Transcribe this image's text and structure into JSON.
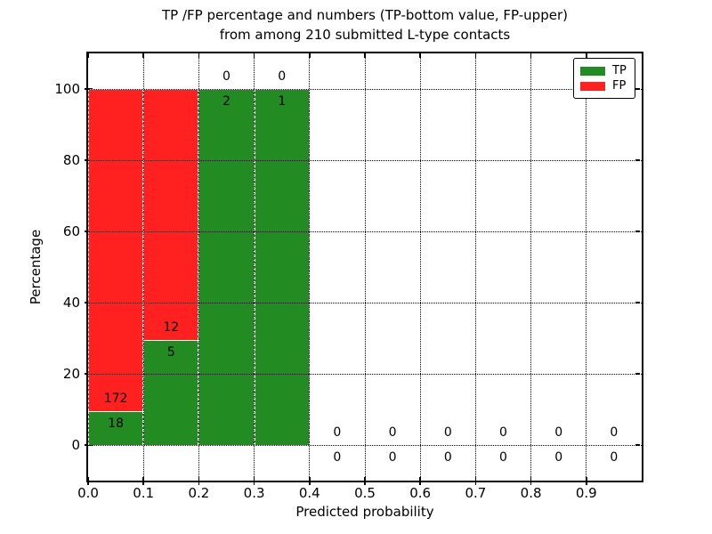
{
  "title": {
    "line1": "TP /FP percentage and numbers (TP-bottom value, FP-upper)",
    "line2": "from among 210 submitted L-type contacts"
  },
  "axes": {
    "xlabel": "Predicted probability",
    "ylabel": "Percentage",
    "x_ticks": [
      "0.0",
      "0.1",
      "0.2",
      "0.3",
      "0.4",
      "0.5",
      "0.6",
      "0.7",
      "0.8",
      "0.9"
    ],
    "y_ticks": [
      "0",
      "20",
      "40",
      "60",
      "80",
      "100"
    ]
  },
  "legend": {
    "items": [
      {
        "label": "TP",
        "color": "#228B22"
      },
      {
        "label": "FP",
        "color": "#FF2020"
      }
    ]
  },
  "chart_data": {
    "type": "bar",
    "stacked": true,
    "title": "TP /FP percentage and numbers (TP-bottom value, FP-upper) from among 210 submitted L-type contacts",
    "xlabel": "Predicted probability",
    "ylabel": "Percentage",
    "total_contacts": 210,
    "xlim": [
      0.0,
      1.0
    ],
    "ylim": [
      -10,
      110
    ],
    "grid": true,
    "legend_position": "upper right",
    "bin_edges": [
      0.0,
      0.1,
      0.2,
      0.3,
      0.4,
      0.5,
      0.6,
      0.7,
      0.8,
      0.9,
      1.0
    ],
    "categories": [
      "0.0-0.1",
      "0.1-0.2",
      "0.2-0.3",
      "0.3-0.4",
      "0.4-0.5",
      "0.5-0.6",
      "0.6-0.7",
      "0.7-0.8",
      "0.8-0.9",
      "0.9-1.0"
    ],
    "series": [
      {
        "name": "TP",
        "color": "#228B22",
        "counts": [
          18,
          5,
          2,
          1,
          0,
          0,
          0,
          0,
          0,
          0
        ],
        "percent_within_bin": [
          9.47,
          29.41,
          100,
          100,
          0,
          0,
          0,
          0,
          0,
          0
        ]
      },
      {
        "name": "FP",
        "color": "#FF2020",
        "counts": [
          172,
          12,
          0,
          0,
          0,
          0,
          0,
          0,
          0,
          0
        ],
        "percent_within_bin": [
          90.53,
          70.59,
          0,
          0,
          0,
          0,
          0,
          0,
          0,
          0
        ]
      }
    ]
  }
}
